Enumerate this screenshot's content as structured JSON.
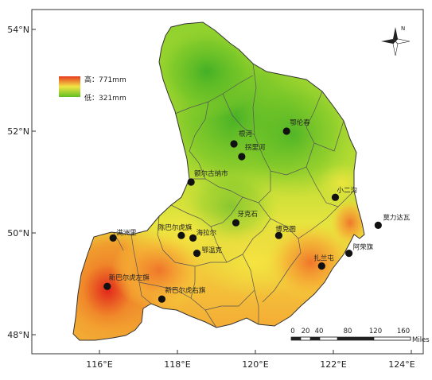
{
  "legend": {
    "high_label": "高：771mm",
    "low_label": "低：321mm",
    "colors": {
      "high": "#e83a1f",
      "mid": "#f1e445",
      "low": "#5fbf22"
    }
  },
  "north_arrow": {
    "label": "N",
    "icon": "compass-rose-icon"
  },
  "axes": {
    "lat_ticks": [
      "54°N",
      "52°N",
      "50°N",
      "48°N"
    ],
    "lon_ticks": [
      "116°E",
      "118°E",
      "120°E",
      "122°E",
      "124°E"
    ]
  },
  "cities": [
    {
      "name": "鄂伦春",
      "lon": 120.8,
      "lat": 52.0
    },
    {
      "name": "根河",
      "lon": 119.45,
      "lat": 51.75
    },
    {
      "name": "拐里河",
      "lon": 119.65,
      "lat": 51.5
    },
    {
      "name": "额尔古纳市",
      "lon": 118.35,
      "lat": 51.0
    },
    {
      "name": "小二沟",
      "lon": 122.05,
      "lat": 50.7
    },
    {
      "name": "莫力达瓦",
      "lon": 123.15,
      "lat": 50.15
    },
    {
      "name": "牙克石",
      "lon": 119.5,
      "lat": 50.2
    },
    {
      "name": "陈巴尔虎旗",
      "lon": 118.1,
      "lat": 49.95
    },
    {
      "name": "海拉尔",
      "lon": 118.4,
      "lat": 49.9
    },
    {
      "name": "鄂温克",
      "lon": 118.5,
      "lat": 49.6
    },
    {
      "name": "博克图",
      "lon": 120.6,
      "lat": 49.95
    },
    {
      "name": "满洲里",
      "lon": 116.35,
      "lat": 49.9
    },
    {
      "name": "阿荣旗",
      "lon": 122.4,
      "lat": 49.6
    },
    {
      "name": "扎兰屯",
      "lon": 121.7,
      "lat": 49.35
    },
    {
      "name": "新巴尔虎左旗",
      "lon": 116.2,
      "lat": 48.95
    },
    {
      "name": "新巴尔虎右旗",
      "lon": 117.6,
      "lat": 48.7
    }
  ],
  "scale_bar": {
    "labels": [
      "0",
      "20",
      "40",
      "80",
      "120",
      "160"
    ],
    "unit": "Miles"
  }
}
